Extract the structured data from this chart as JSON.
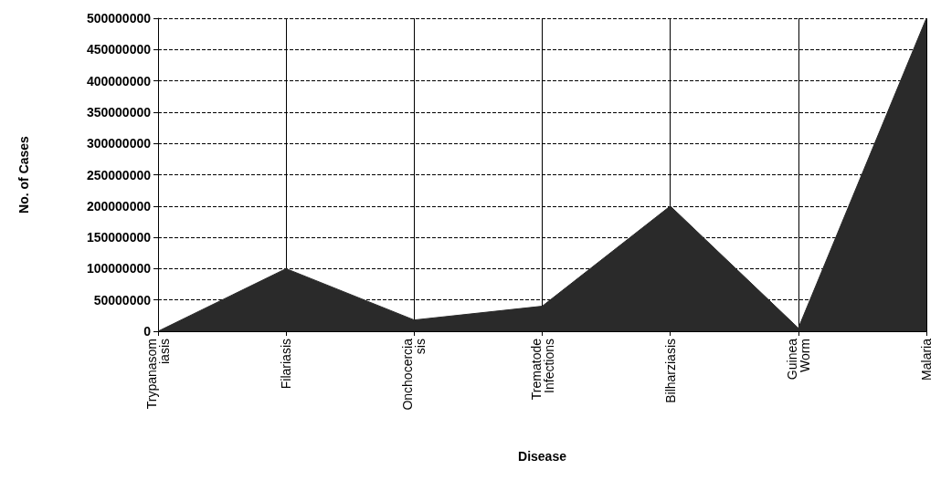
{
  "chart_data": {
    "type": "area",
    "xlabel": "Disease",
    "ylabel": "No. of Cases",
    "categories": [
      "Trypanasom\niasis",
      "Filariasis",
      "Onchocercia\nsis",
      "Trematode\nInfections",
      "Bilharziasis",
      "Guinea\nWorm",
      "Malaria"
    ],
    "series": [
      {
        "color": "#2a2a2a",
        "values": [
          0,
          100000000,
          18000000,
          40000000,
          200000000,
          5000000,
          500000000
        ]
      }
    ],
    "ylim": [
      0,
      500000000
    ],
    "yticks": [
      0,
      50000000,
      100000000,
      150000000,
      200000000,
      250000000,
      300000000,
      350000000,
      400000000,
      450000000,
      500000000
    ],
    "grid": true
  }
}
